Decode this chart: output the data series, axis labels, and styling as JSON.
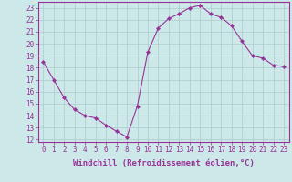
{
  "x": [
    0,
    1,
    2,
    3,
    4,
    5,
    6,
    7,
    8,
    9,
    10,
    11,
    12,
    13,
    14,
    15,
    16,
    17,
    18,
    19,
    20,
    21,
    22,
    23
  ],
  "y": [
    18.5,
    17.0,
    15.5,
    14.5,
    14.0,
    13.8,
    13.2,
    12.7,
    12.2,
    14.8,
    19.3,
    21.3,
    22.1,
    22.5,
    23.0,
    23.2,
    22.5,
    22.2,
    21.5,
    20.2,
    19.0,
    18.8,
    18.2,
    18.1
  ],
  "line_color": "#993399",
  "marker": "D",
  "markersize": 2,
  "linewidth": 0.8,
  "bg_color": "#cce8e8",
  "grid_color": "#aacccc",
  "xlabel": "Windchill (Refroidissement éolien,°C)",
  "ylim": [
    11.8,
    23.5
  ],
  "xlim": [
    -0.5,
    23.5
  ],
  "yticks": [
    12,
    13,
    14,
    15,
    16,
    17,
    18,
    19,
    20,
    21,
    22,
    23
  ],
  "xticks": [
    0,
    1,
    2,
    3,
    4,
    5,
    6,
    7,
    8,
    9,
    10,
    11,
    12,
    13,
    14,
    15,
    16,
    17,
    18,
    19,
    20,
    21,
    22,
    23
  ],
  "tick_fontsize": 5.5,
  "xlabel_fontsize": 6.5,
  "font_color": "#993399"
}
